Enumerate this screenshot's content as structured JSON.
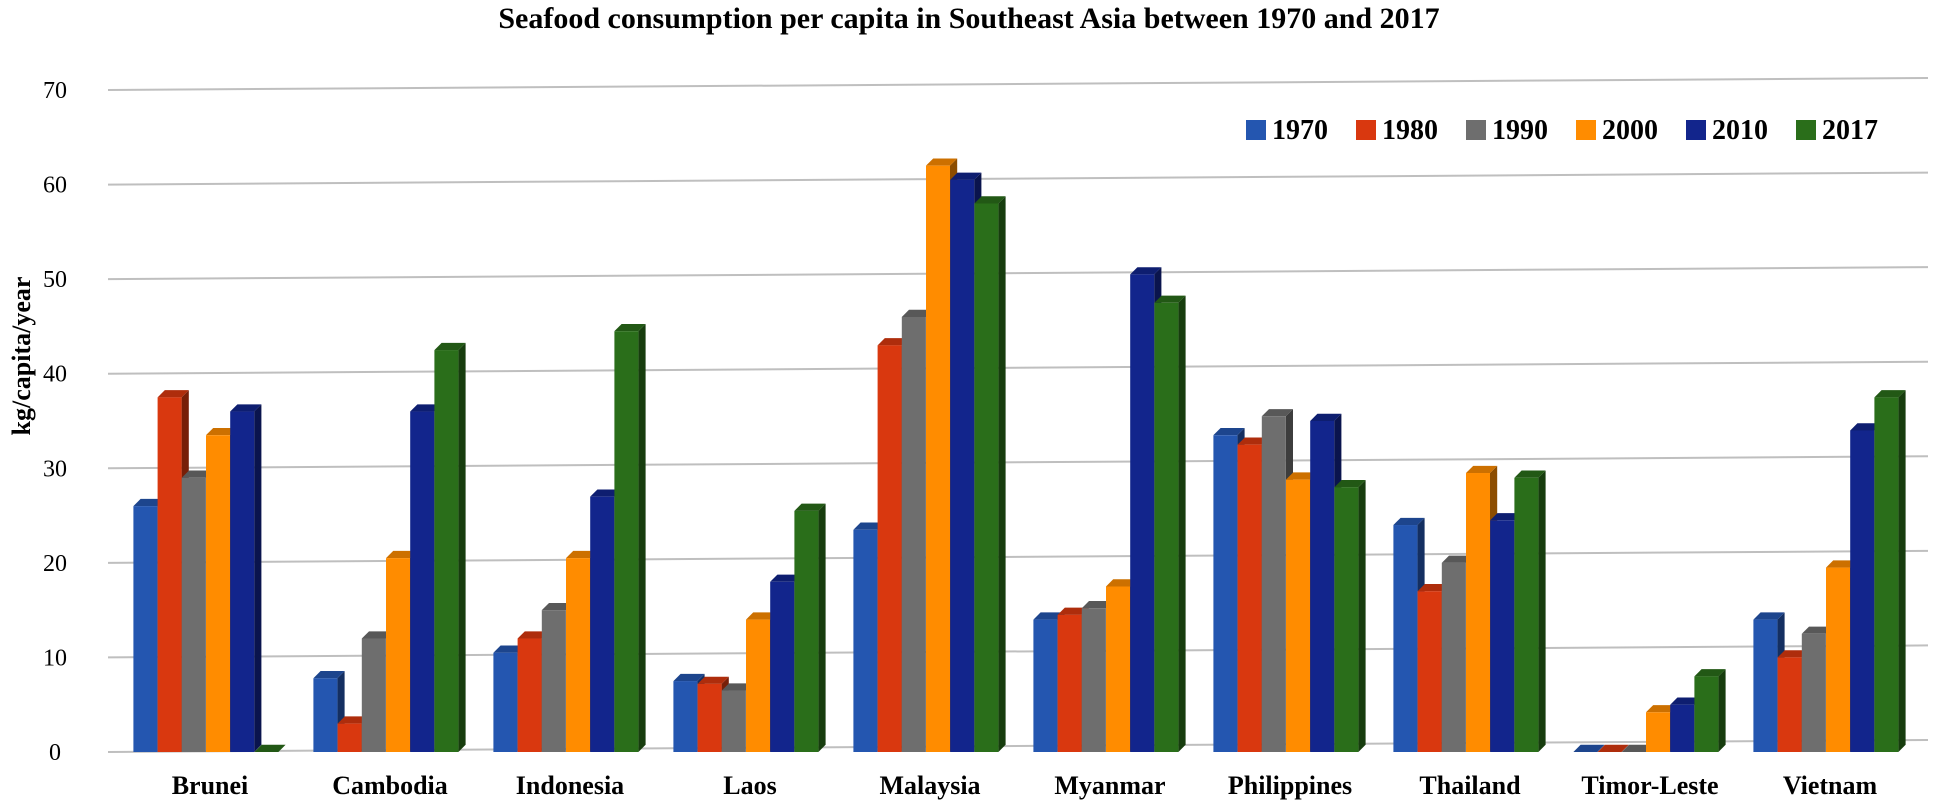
{
  "chart_data": {
    "type": "bar",
    "title": "Seafood consumption per capita in Southeast Asia between 1970 and 2017",
    "xlabel": "",
    "ylabel": "kg/capita/year",
    "ylim": [
      0,
      70
    ],
    "yticks": [
      0,
      10,
      20,
      30,
      40,
      50,
      60,
      70
    ],
    "grid": true,
    "legend_position": "top-right",
    "categories": [
      "Brunei",
      "Cambodia",
      "Indonesia",
      "Laos",
      "Malaysia",
      "Myanmar",
      "Philippines",
      "Thailand",
      "Timor-Leste",
      "Vietnam"
    ],
    "series": [
      {
        "name": "1970",
        "color": "#2456b0",
        "values": [
          26,
          7.8,
          10.5,
          7.5,
          23.5,
          14,
          33.5,
          24,
          0,
          14
        ]
      },
      {
        "name": "1980",
        "color": "#d9380f",
        "values": [
          37.5,
          3,
          12,
          7.2,
          43,
          14.5,
          32.5,
          17,
          0,
          10
        ]
      },
      {
        "name": "1990",
        "color": "#6e6e6e",
        "values": [
          29,
          12,
          15,
          6.5,
          46,
          15.2,
          35.5,
          20,
          0,
          12.5
        ]
      },
      {
        "name": "2000",
        "color": "#ff8c00",
        "values": [
          33.5,
          20.5,
          20.5,
          14,
          62,
          17.5,
          28.8,
          29.5,
          4.2,
          19.5
        ]
      },
      {
        "name": "2010",
        "color": "#12258c",
        "values": [
          36,
          36,
          27,
          18,
          60.5,
          50.5,
          35,
          24.5,
          5,
          34
        ]
      },
      {
        "name": "2017",
        "color": "#2a6e1a",
        "values": [
          0,
          42.5,
          44.5,
          25.5,
          58,
          47.5,
          28,
          29,
          8,
          37.5
        ]
      }
    ]
  }
}
